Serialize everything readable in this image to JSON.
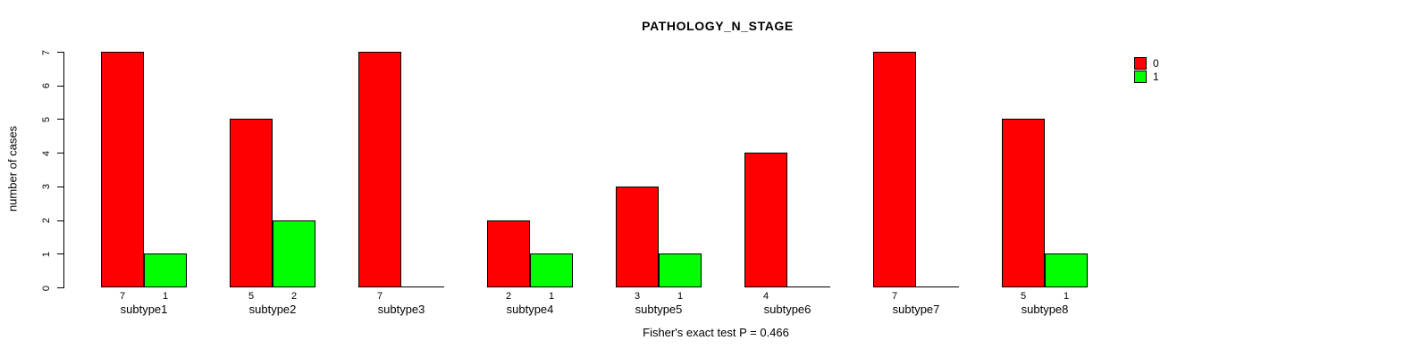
{
  "chart_data": {
    "type": "bar",
    "title": "PATHOLOGY_N_STAGE",
    "ylabel": "number of cases",
    "xlabel": "",
    "subtitle": "Fisher's exact test P = 0.466",
    "categories": [
      "subtype1",
      "subtype2",
      "subtype3",
      "subtype4",
      "subtype5",
      "subtype6",
      "subtype7",
      "subtype8"
    ],
    "series": [
      {
        "name": "0",
        "color": "#FF0000",
        "values": [
          7,
          5,
          7,
          2,
          3,
          4,
          7,
          5
        ]
      },
      {
        "name": "1",
        "color": "#00FF00",
        "values": [
          1,
          2,
          0,
          1,
          1,
          0,
          0,
          1
        ]
      }
    ],
    "ylim": [
      0,
      7
    ],
    "yticks": [
      0,
      1,
      2,
      3,
      4,
      5,
      6,
      7
    ],
    "bar_count_labels_shown_when_nonzero": true,
    "legend_position": "top-right",
    "grid": false,
    "background_color": "#FFFFFF",
    "axis_color": "#000000"
  }
}
